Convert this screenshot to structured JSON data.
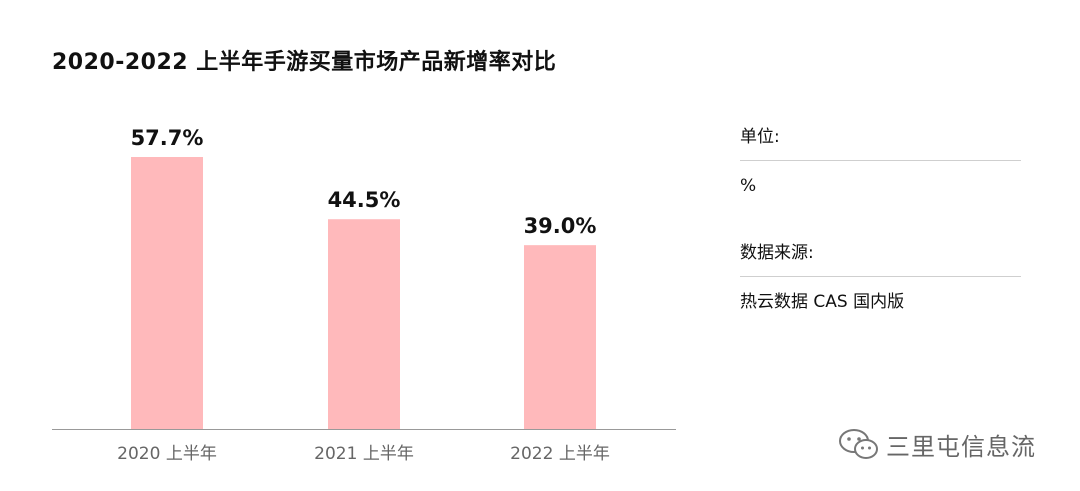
{
  "title": "2020-2022 上半年手游买量市场产品新增率对比",
  "side": {
    "unit_label": "单位:",
    "unit_value": "%",
    "source_label": "数据来源:",
    "source_value": "热云数据 CAS 国内版"
  },
  "watermark": {
    "text": "三里屯信息流",
    "icon": "wechat-chat-icon"
  },
  "colors": {
    "bar": "#ffb9bb",
    "axis": "#999999",
    "tick_text": "#666666",
    "value_text": "#111111"
  },
  "chart_data": {
    "type": "bar",
    "title": "2020-2022 上半年手游买量市场产品新增率对比",
    "categories": [
      "2020 上半年",
      "2021 上半年",
      "2022 上半年"
    ],
    "values": [
      57.7,
      44.5,
      39.0
    ],
    "value_labels": [
      "57.7%",
      "44.5%",
      "39.0%"
    ],
    "xlabel": "",
    "ylabel": "",
    "ylim": [
      0,
      70
    ],
    "grid": false,
    "legend": "none"
  }
}
